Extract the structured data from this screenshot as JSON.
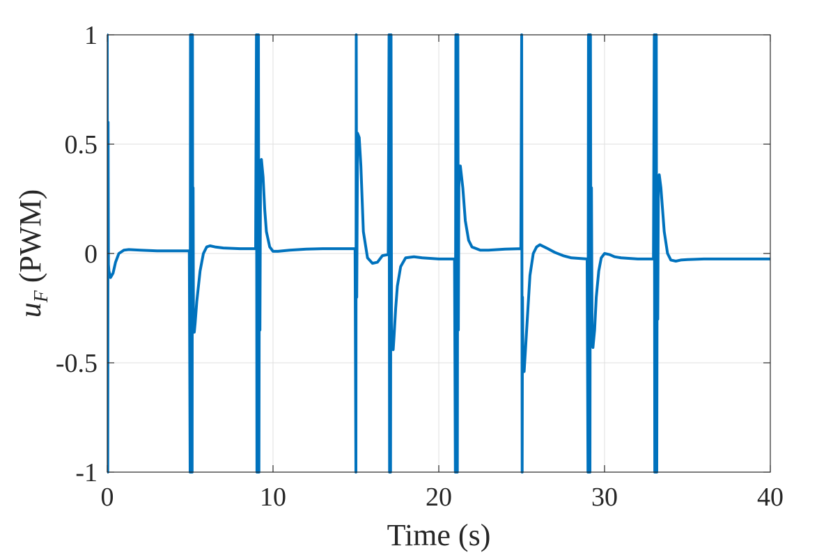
{
  "chart_data": {
    "type": "line",
    "title": "",
    "xlabel": "Time (s)",
    "ylabel_main": "u",
    "ylabel_sub": "F",
    "ylabel_unit": " (PWM)",
    "xlim": [
      0,
      40
    ],
    "ylim": [
      -1,
      1
    ],
    "x_ticks": [
      0,
      10,
      20,
      30,
      40
    ],
    "x_tick_labels": [
      "0",
      "10",
      "20",
      "30",
      "40"
    ],
    "y_ticks": [
      -1,
      -0.5,
      0,
      0.5,
      1
    ],
    "y_tick_labels": [
      "-1",
      "-0.5",
      "0",
      "0.5",
      "1"
    ],
    "grid": true,
    "legend": "none",
    "line_color": "#0072BD",
    "series": [
      {
        "x": [
          0,
          0.03,
          0.05,
          0.07,
          0.1,
          0.2,
          0.35,
          0.5,
          0.7,
          1.0,
          1.3,
          2.0,
          3.0,
          4.0,
          4.95,
          5.0,
          5.02,
          5.04,
          5.06,
          5.08,
          5.1,
          5.12,
          5.14,
          5.16,
          5.18,
          5.2,
          5.25,
          5.3,
          5.4,
          5.6,
          5.8,
          6.0,
          6.2,
          6.5,
          7.0,
          8.0,
          8.95,
          9.0,
          9.03,
          9.06,
          9.09,
          9.12,
          9.15,
          9.18,
          9.21,
          9.25,
          9.3,
          9.4,
          9.5,
          9.6,
          9.8,
          10.0,
          10.3,
          11.0,
          12.0,
          13.0,
          14.0,
          14.95,
          15.0,
          15.02,
          15.05,
          15.1,
          15.2,
          15.3,
          15.45,
          15.7,
          16.0,
          16.3,
          16.6,
          16.95,
          17.0,
          17.03,
          17.06,
          17.09,
          17.12,
          17.15,
          17.2,
          17.25,
          17.3,
          17.4,
          17.5,
          17.7,
          18.0,
          18.5,
          19.0,
          20.0,
          20.95,
          21.0,
          21.03,
          21.06,
          21.09,
          21.12,
          21.15,
          21.18,
          21.21,
          21.25,
          21.3,
          21.45,
          21.6,
          21.8,
          22.0,
          22.5,
          23.0,
          24.0,
          24.95,
          25.0,
          25.03,
          25.05,
          25.08,
          25.15,
          25.3,
          25.5,
          25.7,
          25.9,
          26.1,
          26.5,
          27.0,
          27.5,
          28.0,
          28.95,
          29.0,
          29.03,
          29.06,
          29.09,
          29.12,
          29.15,
          29.18,
          29.21,
          29.25,
          29.3,
          29.4,
          29.5,
          29.65,
          29.8,
          30.0,
          30.3,
          30.6,
          31.0,
          32.0,
          32.95,
          33.0,
          33.03,
          33.06,
          33.09,
          33.12,
          33.15,
          33.18,
          33.21,
          33.25,
          33.3,
          33.4,
          33.5,
          33.6,
          33.8,
          34.0,
          34.3,
          34.6,
          35.0,
          36.0,
          38.0,
          40.0
        ],
        "y": [
          1.0,
          -1.0,
          0.6,
          -0.05,
          -0.08,
          -0.11,
          -0.09,
          -0.04,
          0.0,
          0.015,
          0.018,
          0.015,
          0.012,
          0.012,
          0.012,
          -1.0,
          1.0,
          -1.0,
          1.0,
          -1.0,
          1.0,
          -1.0,
          1.0,
          -0.35,
          0.3,
          -0.35,
          -0.36,
          -0.32,
          -0.22,
          -0.08,
          0.0,
          0.03,
          0.035,
          0.03,
          0.025,
          0.022,
          0.022,
          1.0,
          -1.0,
          1.0,
          -1.0,
          1.0,
          -1.0,
          0.35,
          -0.35,
          0.42,
          0.43,
          0.35,
          0.2,
          0.1,
          0.03,
          0.01,
          0.01,
          0.015,
          0.02,
          0.022,
          0.022,
          0.022,
          -1.0,
          1.0,
          -0.2,
          0.55,
          0.53,
          0.4,
          0.1,
          -0.02,
          -0.045,
          -0.04,
          -0.01,
          -0.005,
          1.0,
          -1.0,
          1.0,
          -1.0,
          1.0,
          -0.35,
          -0.43,
          -0.44,
          -0.38,
          -0.25,
          -0.15,
          -0.06,
          -0.02,
          -0.015,
          -0.02,
          -0.025,
          -0.025,
          -1.0,
          1.0,
          -1.0,
          1.0,
          -1.0,
          1.0,
          -0.35,
          0.3,
          0.4,
          0.4,
          0.3,
          0.15,
          0.06,
          0.03,
          0.015,
          0.015,
          0.02,
          0.022,
          1.0,
          -1.0,
          -0.2,
          -0.5,
          -0.54,
          -0.35,
          -0.1,
          0.0,
          0.03,
          0.04,
          0.025,
          0.005,
          -0.01,
          -0.02,
          -0.025,
          -1.0,
          1.0,
          -1.0,
          1.0,
          -1.0,
          1.0,
          -0.35,
          0.3,
          -0.4,
          -0.43,
          -0.35,
          -0.2,
          -0.08,
          -0.02,
          0.0,
          -0.005,
          -0.015,
          -0.02,
          -0.025,
          -0.025,
          1.0,
          -1.0,
          1.0,
          -1.0,
          1.0,
          -1.0,
          0.3,
          -0.3,
          0.35,
          0.36,
          0.3,
          0.2,
          0.1,
          0.0,
          -0.03,
          -0.035,
          -0.03,
          -0.028,
          -0.025,
          -0.025,
          -0.025
        ]
      }
    ]
  }
}
